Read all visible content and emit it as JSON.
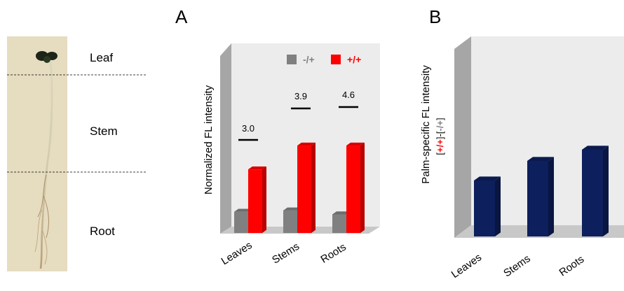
{
  "seedling": {
    "labels": [
      "Leaf",
      "Stem",
      "Root"
    ]
  },
  "chart_data": [
    {
      "panel": "A",
      "type": "bar",
      "ylabel": "Normalized FL intensity",
      "categories": [
        "Leaves",
        "Stems",
        "Roots"
      ],
      "ylim": [
        0,
        7
      ],
      "grid": false,
      "legend": "top-right",
      "series": [
        {
          "name": "-/+",
          "color": "#808080",
          "values": [
            0.8,
            0.85,
            0.7
          ]
        },
        {
          "name": "+/+",
          "color": "#ff0000",
          "values": [
            2.4,
            3.3,
            3.3
          ]
        }
      ],
      "annotations": [
        "3.0",
        "3.9",
        "4.6"
      ]
    },
    {
      "panel": "B",
      "type": "bar",
      "ylabel": "Palm-specific FL intensity",
      "ylabel2": [
        "[",
        "+/+",
        "]-[",
        "-/+",
        "]"
      ],
      "categories": [
        "Leaves",
        "Stems",
        "Roots"
      ],
      "ylim": [
        0,
        7
      ],
      "grid": false,
      "series": [
        {
          "color": "#0d1f5c",
          "values": [
            2.0,
            2.7,
            3.1
          ]
        }
      ]
    }
  ],
  "colors": {
    "wall": "#ececec",
    "side_wall": "#a6a6a6",
    "floor": "#c8c8c8",
    "red": "#ff0000",
    "gray": "#808080",
    "navy": "#0d1f5c"
  }
}
